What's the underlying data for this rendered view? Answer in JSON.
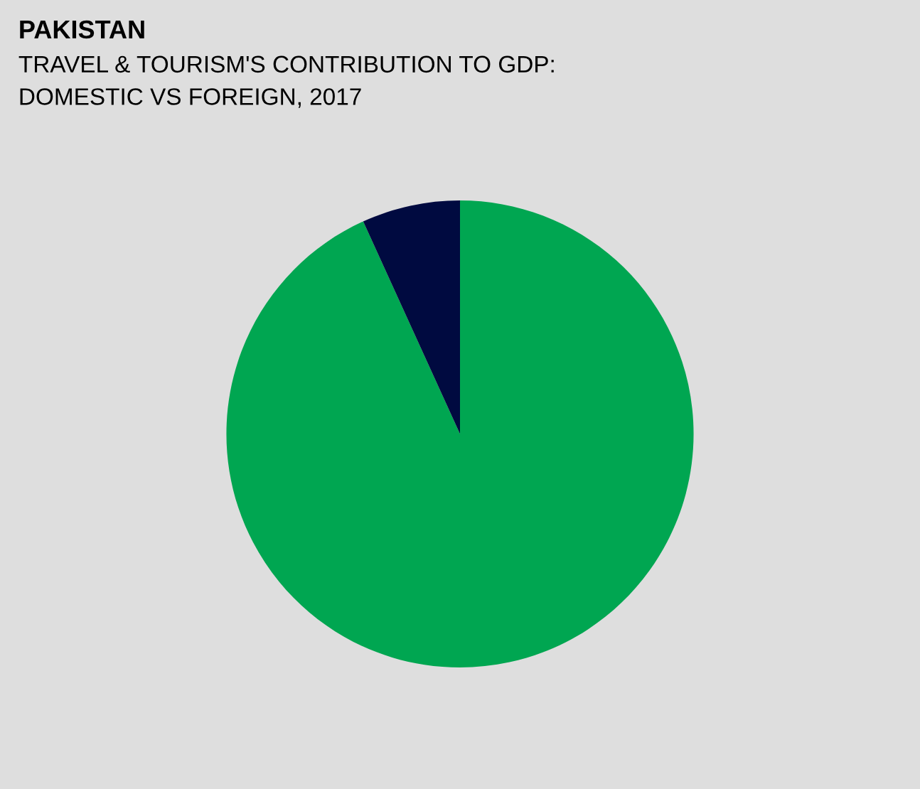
{
  "chart_data": {
    "type": "pie",
    "title": "PAKISTAN",
    "subtitle": "TRAVEL & TOURISM'S CONTRIBUTION TO GDP:\nDOMESTIC VS FOREIGN, 2017",
    "categories": [
      null,
      null
    ],
    "values": [
      93.2,
      6.8
    ],
    "colors": [
      "#00a651",
      "#000a40"
    ]
  }
}
